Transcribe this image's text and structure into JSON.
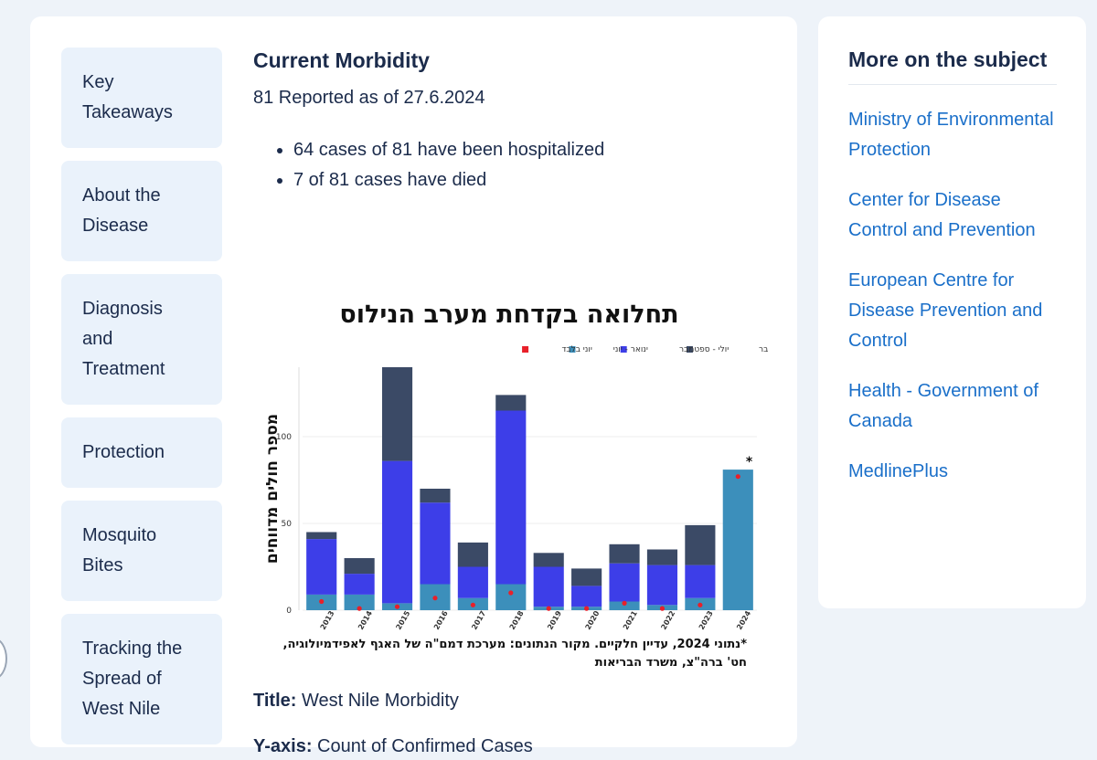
{
  "nav": [
    "Key Takeaways",
    "About the Disease",
    "Diagnosis and Treatment",
    "Protection",
    "Mosquito Bites",
    "Tracking the Spread of West Nile"
  ],
  "content": {
    "heading": "Current Morbidity",
    "subheading": "81 Reported as of 27.6.2024",
    "bullets": [
      "64 cases of 81 have been hospitalized",
      "7 of 81 cases have died"
    ],
    "chart": {
      "type": "bar",
      "stacked": true,
      "title": "תחלואה בקדחת מערב הנילוס",
      "y_label": "מספר חולים מדווחים",
      "categories": [
        "2013",
        "2014",
        "2015",
        "2016",
        "2017",
        "2018",
        "2019",
        "2020",
        "2021",
        "2022",
        "2023",
        "2024"
      ],
      "series": [
        {
          "name": "אוקטובר - דצמבר",
          "color": "#3b4a66",
          "values": [
            4,
            9,
            54,
            8,
            14,
            9,
            8,
            10,
            11,
            9,
            23,
            0
          ]
        },
        {
          "name": "יולי - ספטמבר",
          "color": "#3d3ee8",
          "values": [
            32,
            12,
            82,
            47,
            18,
            100,
            23,
            12,
            22,
            23,
            19,
            0
          ]
        },
        {
          "name": "ינואר - יוני",
          "color": "#3c8fbb",
          "values": [
            9,
            9,
            4,
            15,
            7,
            15,
            2,
            2,
            5,
            3,
            7,
            81
          ]
        },
        {
          "name": "יוני בלבד",
          "color": "#e8202a",
          "marker": "dot",
          "values": [
            5,
            1,
            2,
            7,
            3,
            10,
            1,
            1,
            4,
            1,
            3,
            77
          ]
        }
      ],
      "ylim": [
        0,
        140
      ],
      "yticks": [
        0,
        50,
        100
      ],
      "grid": true,
      "annotation": "*",
      "note": "*נתוני 2024, עדיין חלקיים. מקור הנתונים: מערכת דמם\"ה של האגף לאפידמיולוגיה, חט' ברה\"צ, משרד הבריאות"
    },
    "details": [
      {
        "label": "Title:",
        "text": "West Nile Morbidity"
      },
      {
        "label": "Y-axis:",
        "text": "Count of Confirmed Cases"
      }
    ]
  },
  "sidebar": {
    "title": "More on the subject",
    "links": [
      "Ministry of Environmental Protection",
      "Center for Disease Control and Prevention",
      "European Centre for Disease Prevention and Control",
      "Health - Government of Canada",
      "MedlinePlus"
    ]
  }
}
